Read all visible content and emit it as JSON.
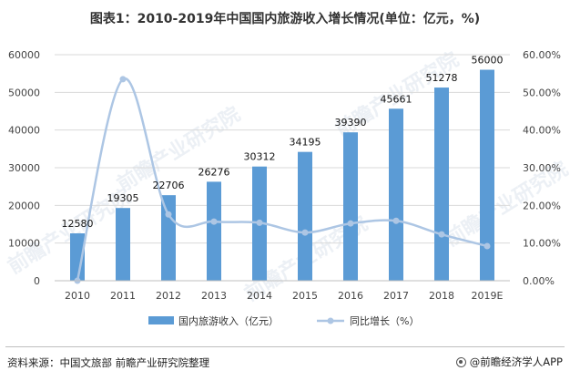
{
  "title": "图表1：2010-2019年中国国内旅游收入增长情况(单位：亿元，%)",
  "source": "资料来源：中国文旅部 前瞻产业研究院整理",
  "brand": "@前瞻经济学人APP",
  "watermark": "前瞻产业研究院",
  "colors": {
    "bar": "#5b9bd5",
    "line": "#adc6e4",
    "grid": "#d9d9d9",
    "axis": "#bfbfbf"
  },
  "chart_data": {
    "type": "bar",
    "categories": [
      "2010",
      "2011",
      "2012",
      "2013",
      "2014",
      "2015",
      "2016",
      "2017",
      "2018",
      "2019E"
    ],
    "series": [
      {
        "name": "国内旅游收入（亿元）",
        "type": "bar",
        "axis": "left",
        "values": [
          12580,
          19305,
          22706,
          26276,
          30312,
          34195,
          39390,
          45661,
          51278,
          56000
        ]
      },
      {
        "name": "同比增长（%）",
        "type": "line",
        "axis": "right",
        "smooth": true,
        "values": [
          0,
          53.5,
          17.6,
          15.7,
          15.4,
          12.8,
          15.2,
          15.9,
          12.3,
          9.2
        ]
      }
    ],
    "ylim_left": [
      0,
      60000
    ],
    "yticks_left": [
      "0",
      "10000",
      "20000",
      "30000",
      "40000",
      "50000",
      "60000"
    ],
    "ylim_right": [
      0,
      60
    ],
    "yticks_right": [
      "0.00%",
      "10.00%",
      "20.00%",
      "30.00%",
      "40.00%",
      "50.00%",
      "60.00%"
    ],
    "grid": true,
    "legend_position": "bottom"
  }
}
